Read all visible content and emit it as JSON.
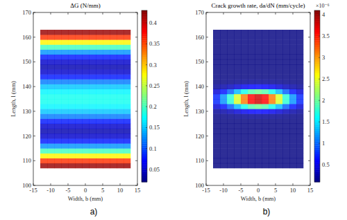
{
  "chart_data": [
    {
      "type": "heatmap",
      "title": "ΔG (N/mm)",
      "panel_label": "a)",
      "x_label": "Width, b (mm)",
      "y_label": "Length, l (mm)",
      "xlim": [
        -15,
        15
      ],
      "xticks": [
        -15,
        -10,
        -5,
        0,
        5,
        10,
        15
      ],
      "ylim": [
        100,
        170
      ],
      "yticks": [
        100,
        110,
        120,
        130,
        140,
        150,
        160,
        170
      ],
      "x": [
        -12,
        -10,
        -8,
        -6,
        -4,
        -2,
        0,
        2,
        4,
        6,
        8,
        10,
        12
      ],
      "y": [
        108,
        110,
        112,
        114,
        116,
        118,
        120,
        122,
        124,
        126,
        128,
        130,
        132,
        134,
        136,
        138,
        140,
        142,
        144,
        146,
        148,
        150,
        152,
        154,
        156,
        158,
        160,
        162
      ],
      "cells": [
        [
          0.42,
          0.42,
          0.42,
          0.42,
          0.42,
          0.42,
          0.42,
          0.42,
          0.42,
          0.42,
          0.42,
          0.42,
          0.42
        ],
        [
          0.36,
          0.36,
          0.36,
          0.36,
          0.36,
          0.36,
          0.36,
          0.36,
          0.36,
          0.36,
          0.36,
          0.36,
          0.36
        ],
        [
          0.28,
          0.28,
          0.28,
          0.28,
          0.28,
          0.28,
          0.28,
          0.28,
          0.28,
          0.28,
          0.28,
          0.28,
          0.28
        ],
        [
          0.2,
          0.2,
          0.2,
          0.2,
          0.2,
          0.2,
          0.2,
          0.2,
          0.2,
          0.2,
          0.2,
          0.2,
          0.2
        ],
        [
          0.13,
          0.13,
          0.13,
          0.13,
          0.13,
          0.13,
          0.13,
          0.13,
          0.13,
          0.13,
          0.13,
          0.13,
          0.13
        ],
        [
          0.08,
          0.08,
          0.08,
          0.08,
          0.08,
          0.08,
          0.08,
          0.08,
          0.08,
          0.08,
          0.08,
          0.08,
          0.08
        ],
        [
          0.05,
          0.05,
          0.05,
          0.05,
          0.05,
          0.05,
          0.05,
          0.05,
          0.05,
          0.05,
          0.05,
          0.05,
          0.05
        ],
        [
          0.04,
          0.04,
          0.04,
          0.04,
          0.04,
          0.04,
          0.04,
          0.04,
          0.04,
          0.04,
          0.04,
          0.04,
          0.04
        ],
        [
          0.05,
          0.05,
          0.05,
          0.05,
          0.05,
          0.05,
          0.05,
          0.05,
          0.05,
          0.05,
          0.05,
          0.05,
          0.05
        ],
        [
          0.08,
          0.08,
          0.08,
          0.08,
          0.08,
          0.08,
          0.08,
          0.08,
          0.08,
          0.08,
          0.08,
          0.08,
          0.08
        ],
        [
          0.12,
          0.12,
          0.12,
          0.12,
          0.12,
          0.12,
          0.12,
          0.12,
          0.12,
          0.12,
          0.12,
          0.12,
          0.12
        ],
        [
          0.15,
          0.15,
          0.15,
          0.15,
          0.15,
          0.15,
          0.15,
          0.15,
          0.15,
          0.15,
          0.15,
          0.15,
          0.15
        ],
        [
          0.17,
          0.17,
          0.17,
          0.17,
          0.17,
          0.17,
          0.17,
          0.17,
          0.17,
          0.17,
          0.17,
          0.17,
          0.17
        ],
        [
          0.18,
          0.18,
          0.18,
          0.18,
          0.18,
          0.18,
          0.18,
          0.18,
          0.18,
          0.18,
          0.18,
          0.18,
          0.18
        ],
        [
          0.18,
          0.18,
          0.18,
          0.18,
          0.18,
          0.18,
          0.18,
          0.18,
          0.18,
          0.18,
          0.18,
          0.18,
          0.18
        ],
        [
          0.17,
          0.17,
          0.17,
          0.17,
          0.17,
          0.17,
          0.17,
          0.17,
          0.17,
          0.17,
          0.17,
          0.17,
          0.17
        ],
        [
          0.15,
          0.15,
          0.15,
          0.15,
          0.15,
          0.15,
          0.15,
          0.15,
          0.15,
          0.15,
          0.15,
          0.15,
          0.15
        ],
        [
          0.12,
          0.12,
          0.12,
          0.12,
          0.12,
          0.12,
          0.12,
          0.12,
          0.12,
          0.12,
          0.12,
          0.12,
          0.12
        ],
        [
          0.08,
          0.08,
          0.08,
          0.08,
          0.08,
          0.08,
          0.08,
          0.08,
          0.08,
          0.08,
          0.08,
          0.08,
          0.08
        ],
        [
          0.05,
          0.05,
          0.05,
          0.05,
          0.05,
          0.05,
          0.05,
          0.05,
          0.05,
          0.05,
          0.05,
          0.05,
          0.05
        ],
        [
          0.04,
          0.04,
          0.04,
          0.04,
          0.04,
          0.04,
          0.04,
          0.04,
          0.04,
          0.04,
          0.04,
          0.04,
          0.04
        ],
        [
          0.05,
          0.05,
          0.05,
          0.05,
          0.05,
          0.05,
          0.05,
          0.05,
          0.05,
          0.05,
          0.05,
          0.05,
          0.05
        ],
        [
          0.08,
          0.08,
          0.08,
          0.08,
          0.08,
          0.08,
          0.08,
          0.08,
          0.08,
          0.08,
          0.08,
          0.08,
          0.08
        ],
        [
          0.13,
          0.13,
          0.13,
          0.13,
          0.13,
          0.13,
          0.13,
          0.13,
          0.13,
          0.13,
          0.13,
          0.13,
          0.13
        ],
        [
          0.2,
          0.2,
          0.2,
          0.2,
          0.2,
          0.2,
          0.2,
          0.2,
          0.2,
          0.2,
          0.2,
          0.2,
          0.2
        ],
        [
          0.28,
          0.28,
          0.28,
          0.28,
          0.28,
          0.28,
          0.28,
          0.28,
          0.28,
          0.28,
          0.28,
          0.28,
          0.28
        ],
        [
          0.36,
          0.36,
          0.36,
          0.36,
          0.36,
          0.36,
          0.36,
          0.36,
          0.36,
          0.36,
          0.36,
          0.36,
          0.36
        ],
        [
          0.42,
          0.42,
          0.42,
          0.42,
          0.42,
          0.42,
          0.42,
          0.42,
          0.42,
          0.42,
          0.42,
          0.42,
          0.42
        ]
      ],
      "colorbar_range": [
        0.02,
        0.43
      ],
      "colorbar_ticks": [
        0.05,
        0.1,
        0.15,
        0.2,
        0.25,
        0.3,
        0.35,
        0.4
      ]
    },
    {
      "type": "heatmap",
      "title": "Crack growth rate, da/dN (mm/cycle)",
      "panel_label": "b)",
      "x_label": "Width, b (mm)",
      "y_label": "Length, l (mm)",
      "xlim": [
        -15,
        15
      ],
      "xticks": [
        -15,
        -10,
        -5,
        0,
        5,
        10,
        15
      ],
      "ylim": [
        100,
        170
      ],
      "yticks": [
        100,
        110,
        120,
        130,
        140,
        150,
        160,
        170
      ],
      "x": [
        -12,
        -10,
        -8,
        -6,
        -4,
        -2,
        0,
        2,
        4,
        6,
        8,
        10,
        12
      ],
      "y": [
        108,
        110,
        112,
        114,
        116,
        118,
        120,
        122,
        124,
        126,
        128,
        130,
        132,
        134,
        136,
        138,
        140,
        142,
        144,
        146,
        148,
        150,
        152,
        154,
        156,
        158,
        160,
        162
      ],
      "cells": [
        [
          0.1,
          0.1,
          0.1,
          0.1,
          0.1,
          0.1,
          0.1,
          0.1,
          0.1,
          0.1,
          0.1,
          0.1,
          0.1
        ],
        [
          0.1,
          0.1,
          0.1,
          0.1,
          0.1,
          0.1,
          0.1,
          0.1,
          0.1,
          0.1,
          0.1,
          0.1,
          0.1
        ],
        [
          0.1,
          0.1,
          0.1,
          0.1,
          0.1,
          0.1,
          0.1,
          0.1,
          0.1,
          0.1,
          0.1,
          0.1,
          0.1
        ],
        [
          0.1,
          0.1,
          0.1,
          0.1,
          0.1,
          0.1,
          0.1,
          0.1,
          0.1,
          0.1,
          0.1,
          0.1,
          0.1
        ],
        [
          0.1,
          0.1,
          0.1,
          0.1,
          0.1,
          0.1,
          0.1,
          0.1,
          0.1,
          0.1,
          0.1,
          0.1,
          0.1
        ],
        [
          0.1,
          0.1,
          0.1,
          0.1,
          0.1,
          0.1,
          0.1,
          0.1,
          0.1,
          0.1,
          0.1,
          0.1,
          0.1
        ],
        [
          0.1,
          0.1,
          0.1,
          0.1,
          0.1,
          0.1,
          0.1,
          0.1,
          0.1,
          0.1,
          0.1,
          0.1,
          0.1
        ],
        [
          0.1,
          0.1,
          0.1,
          0.1,
          0.1,
          0.1,
          0.1,
          0.1,
          0.1,
          0.1,
          0.1,
          0.1,
          0.1
        ],
        [
          0.1,
          0.1,
          0.1,
          0.1,
          0.1,
          0.1,
          0.1,
          0.1,
          0.1,
          0.1,
          0.1,
          0.1,
          0.1
        ],
        [
          0.1,
          0.1,
          0.1,
          0.1,
          0.1,
          0.1,
          0.1,
          0.1,
          0.1,
          0.1,
          0.1,
          0.1,
          0.1
        ],
        [
          0.11,
          0.12,
          0.13,
          0.15,
          0.16,
          0.17,
          0.17,
          0.17,
          0.16,
          0.15,
          0.13,
          0.12,
          0.11
        ],
        [
          0.19,
          0.25,
          0.33,
          0.43,
          0.53,
          0.59,
          0.62,
          0.59,
          0.53,
          0.43,
          0.33,
          0.25,
          0.19
        ],
        [
          0.43,
          0.66,
          0.96,
          1.33,
          1.67,
          1.92,
          2.02,
          1.92,
          1.67,
          1.33,
          0.96,
          0.66,
          0.43
        ],
        [
          0.73,
          1.17,
          1.76,
          2.46,
          3.12,
          3.6,
          3.78,
          3.6,
          3.12,
          2.46,
          1.76,
          1.17,
          0.73
        ],
        [
          0.73,
          1.17,
          1.76,
          2.46,
          3.12,
          3.6,
          3.78,
          3.6,
          3.12,
          2.46,
          1.76,
          1.17,
          0.73
        ],
        [
          0.43,
          0.66,
          0.96,
          1.33,
          1.67,
          1.92,
          2.02,
          1.92,
          1.67,
          1.33,
          0.96,
          0.66,
          0.43
        ],
        [
          0.19,
          0.25,
          0.33,
          0.43,
          0.53,
          0.59,
          0.62,
          0.59,
          0.53,
          0.43,
          0.33,
          0.25,
          0.19
        ],
        [
          0.11,
          0.12,
          0.13,
          0.15,
          0.16,
          0.17,
          0.17,
          0.17,
          0.16,
          0.15,
          0.13,
          0.12,
          0.11
        ],
        [
          0.1,
          0.1,
          0.1,
          0.1,
          0.1,
          0.1,
          0.1,
          0.1,
          0.1,
          0.1,
          0.1,
          0.1,
          0.1
        ],
        [
          0.1,
          0.1,
          0.1,
          0.1,
          0.1,
          0.1,
          0.1,
          0.1,
          0.1,
          0.1,
          0.1,
          0.1,
          0.1
        ],
        [
          0.1,
          0.1,
          0.1,
          0.1,
          0.1,
          0.1,
          0.1,
          0.1,
          0.1,
          0.1,
          0.1,
          0.1,
          0.1
        ],
        [
          0.1,
          0.1,
          0.1,
          0.1,
          0.1,
          0.1,
          0.1,
          0.1,
          0.1,
          0.1,
          0.1,
          0.1,
          0.1
        ],
        [
          0.1,
          0.1,
          0.1,
          0.1,
          0.1,
          0.1,
          0.1,
          0.1,
          0.1,
          0.1,
          0.1,
          0.1,
          0.1
        ],
        [
          0.1,
          0.1,
          0.1,
          0.1,
          0.1,
          0.1,
          0.1,
          0.1,
          0.1,
          0.1,
          0.1,
          0.1,
          0.1
        ],
        [
          0.1,
          0.1,
          0.1,
          0.1,
          0.1,
          0.1,
          0.1,
          0.1,
          0.1,
          0.1,
          0.1,
          0.1,
          0.1
        ],
        [
          0.1,
          0.1,
          0.1,
          0.1,
          0.1,
          0.1,
          0.1,
          0.1,
          0.1,
          0.1,
          0.1,
          0.1,
          0.1
        ],
        [
          0.1,
          0.1,
          0.1,
          0.1,
          0.1,
          0.1,
          0.1,
          0.1,
          0.1,
          0.1,
          0.1,
          0.1,
          0.1
        ],
        [
          0.1,
          0.1,
          0.1,
          0.1,
          0.1,
          0.1,
          0.1,
          0.1,
          0.1,
          0.1,
          0.1,
          0.1,
          0.1
        ]
      ],
      "colorbar_range": [
        0.1,
        4.1
      ],
      "colorbar_ticks": [
        0.5,
        1,
        1.5,
        2,
        2.5,
        3,
        3.5,
        4
      ],
      "colorbar_exponent_label": "×10⁻⁶"
    }
  ]
}
